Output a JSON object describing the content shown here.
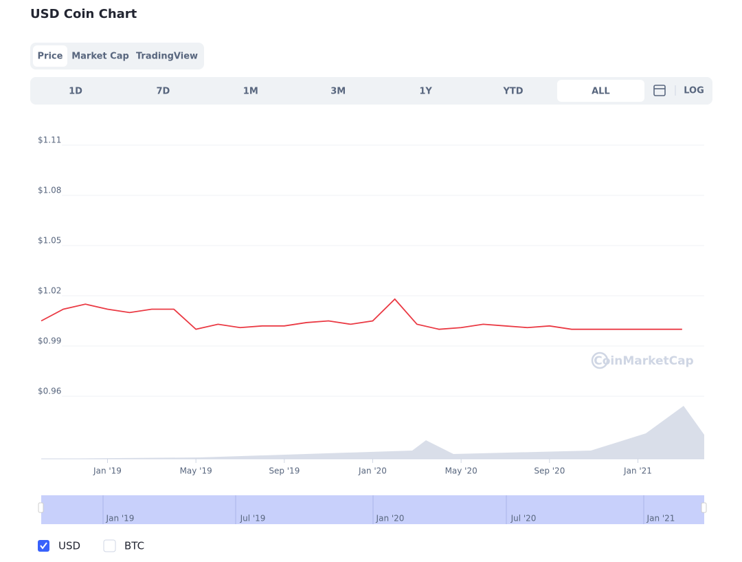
{
  "page": {
    "title": "USD Coin Chart",
    "tabs": [
      "Price",
      "Market Cap",
      "TradingView"
    ],
    "ranges": [
      "1D",
      "7D",
      "1M",
      "3M",
      "1Y",
      "YTD",
      "ALL"
    ],
    "log": "LOG",
    "watermark": "CoinMarketCap",
    "navigator_labels": [
      "Jan '19",
      "Jul '19",
      "Jan '20",
      "Jul '20",
      "Jan '21"
    ],
    "legend": [
      "USD",
      "BTC"
    ]
  },
  "chart_data": {
    "type": "line",
    "x": [
      "2018-10",
      "2018-11",
      "2018-12",
      "2019-01",
      "2019-02",
      "2019-03",
      "2019-04",
      "2019-05",
      "2019-06",
      "2019-07",
      "2019-08",
      "2019-09",
      "2019-10",
      "2019-11",
      "2019-12",
      "2020-01",
      "2020-02",
      "2020-03",
      "2020-04",
      "2020-05",
      "2020-06",
      "2020-07",
      "2020-08",
      "2020-09",
      "2020-10",
      "2020-11",
      "2020-12",
      "2021-01",
      "2021-02",
      "2021-03"
    ],
    "series": [
      {
        "name": "USD",
        "color": "#ea3943",
        "values": [
          1.005,
          1.012,
          1.015,
          1.012,
          1.01,
          1.012,
          1.012,
          1.0,
          1.003,
          1.001,
          1.002,
          1.002,
          1.004,
          1.005,
          1.003,
          1.005,
          1.018,
          1.003,
          1.0,
          1.001,
          1.003,
          1.002,
          1.001,
          1.002,
          1.0,
          1.0,
          1.0,
          1.0,
          1.0,
          1.0
        ]
      }
    ],
    "xlim": [
      "2018-10",
      "2021-04"
    ],
    "xticks": [
      {
        "value": "2019-01",
        "label": "Jan '19"
      },
      {
        "value": "2019-05",
        "label": "May '19"
      },
      {
        "value": "2019-09",
        "label": "Sep '19"
      },
      {
        "value": "2020-01",
        "label": "Jan '20"
      },
      {
        "value": "2020-05",
        "label": "May '20"
      },
      {
        "value": "2020-09",
        "label": "Sep '20"
      },
      {
        "value": "2021-01",
        "label": "Jan '21"
      }
    ],
    "ylim": [
      0.96,
      1.11
    ],
    "yticks": [
      {
        "value": 0.96,
        "label": "$0.96"
      },
      {
        "value": 0.99,
        "label": "$0.99"
      },
      {
        "value": 1.02,
        "label": "$1.02"
      },
      {
        "value": 1.05,
        "label": "$1.05"
      },
      {
        "value": 1.08,
        "label": "$1.08"
      },
      {
        "value": 1.11,
        "label": "$1.11"
      }
    ],
    "grid": true
  }
}
